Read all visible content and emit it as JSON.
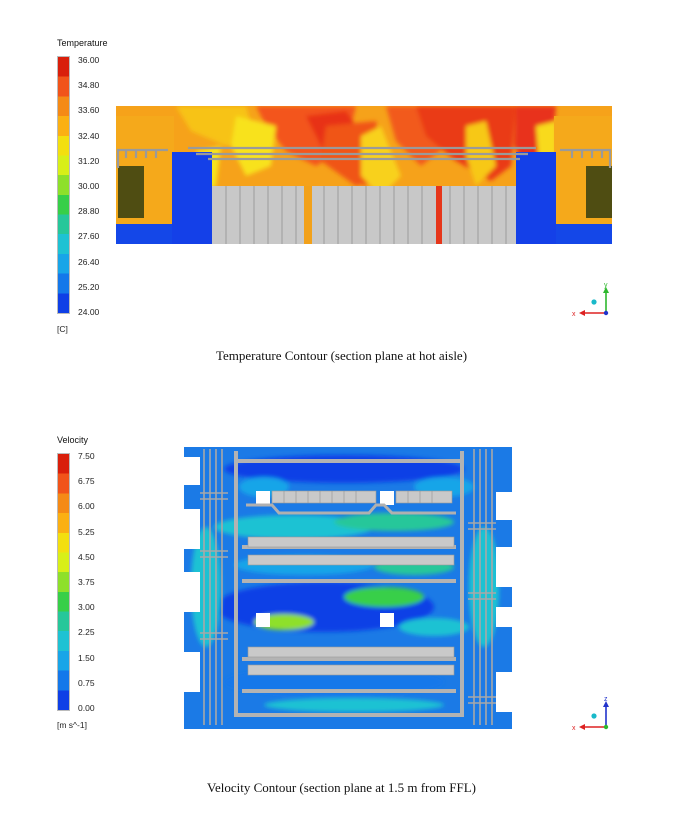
{
  "figure1": {
    "legend_title": "Temperature",
    "ticks": [
      "36.00",
      "34.80",
      "33.60",
      "32.40",
      "31.20",
      "30.00",
      "28.80",
      "27.60",
      "26.40",
      "25.20",
      "24.00"
    ],
    "unit": "[C]",
    "axes": {
      "horizontal": "x",
      "vertical": "y"
    },
    "caption": "Temperature Contour (section plane at hot aisle)"
  },
  "figure2": {
    "legend_title": "Velocity",
    "ticks": [
      "7.50",
      "6.75",
      "6.00",
      "5.25",
      "4.50",
      "3.75",
      "3.00",
      "2.25",
      "1.50",
      "0.75",
      "0.00"
    ],
    "unit": "[m s^-1]",
    "axes": {
      "horizontal": "x",
      "vertical": "z"
    },
    "caption": "Velocity Contour (section plane at 1.5 m from FFL)"
  },
  "colormap": [
    "#d91f0b",
    "#f1541a",
    "#f58a16",
    "#fbb013",
    "#f3df0f",
    "#d8ef18",
    "#8ee02a",
    "#37cf48",
    "#26c79a",
    "#1ec2d3",
    "#18a5e8",
    "#1478ea",
    "#0f3fe6"
  ]
}
